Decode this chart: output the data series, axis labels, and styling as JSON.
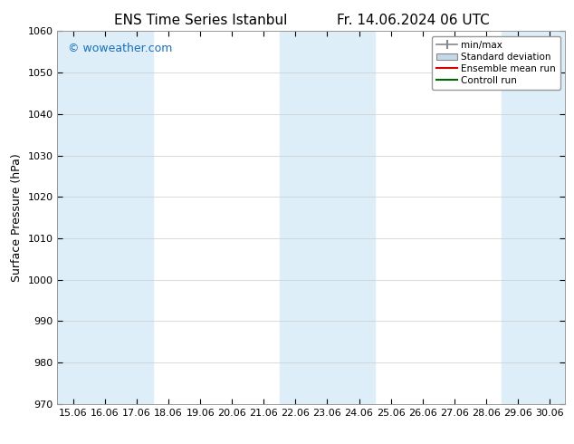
{
  "title": "ENS Time Series Istanbul",
  "title2": "Fr. 14.06.2024 06 UTC",
  "ylabel": "Surface Pressure (hPa)",
  "ylim": [
    970,
    1060
  ],
  "yticks": [
    970,
    980,
    990,
    1000,
    1010,
    1020,
    1030,
    1040,
    1050,
    1060
  ],
  "xlim_start": 14.5,
  "xlim_end": 30.5,
  "xtick_labels": [
    "15.06",
    "16.06",
    "17.06",
    "18.06",
    "19.06",
    "20.06",
    "21.06",
    "22.06",
    "23.06",
    "24.06",
    "25.06",
    "26.06",
    "27.06",
    "28.06",
    "29.06",
    "30.06"
  ],
  "xtick_positions": [
    15.0,
    16.0,
    17.0,
    18.0,
    19.0,
    20.0,
    21.0,
    22.0,
    23.0,
    24.0,
    25.0,
    26.0,
    27.0,
    28.0,
    29.0,
    30.0
  ],
  "shaded_bands": [
    {
      "x_start": 14.5,
      "x_end": 17.5
    },
    {
      "x_start": 21.5,
      "x_end": 24.5
    },
    {
      "x_start": 28.5,
      "x_end": 30.5
    }
  ],
  "shade_color": "#ddeef8",
  "watermark": "© woweather.com",
  "watermark_color": "#1a6fba",
  "legend_labels": [
    "min/max",
    "Standard deviation",
    "Ensemble mean run",
    "Controll run"
  ],
  "background_color": "#ffffff",
  "plot_bg_color": "#ffffff",
  "title_fontsize": 11,
  "axis_fontsize": 9,
  "tick_fontsize": 8,
  "legend_fontsize": 7.5
}
